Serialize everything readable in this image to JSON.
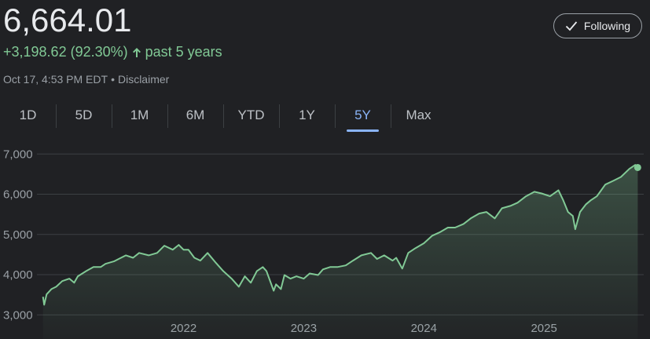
{
  "header": {
    "price": "6,664.01",
    "change": "+3,198.62 (92.30%)",
    "period": "past 5 years",
    "timestamp": "Oct 17, 4:53 PM EDT",
    "separator": "•",
    "disclaimer": "Disclaimer",
    "button": "Following"
  },
  "ranges": [
    "1D",
    "5D",
    "1M",
    "6M",
    "YTD",
    "1Y",
    "5Y",
    "Max"
  ],
  "selected_range": "5Y",
  "chart_data": {
    "type": "line",
    "x": [
      2020.83,
      2020.84,
      2020.86,
      2020.9,
      2020.94,
      2020.99,
      2021.05,
      2021.09,
      2021.12,
      2021.19,
      2021.25,
      2021.31,
      2021.35,
      2021.42,
      2021.46,
      2021.52,
      2021.58,
      2021.63,
      2021.71,
      2021.78,
      2021.84,
      2021.91,
      2021.96,
      2022.0,
      2022.04,
      2022.09,
      2022.14,
      2022.2,
      2022.27,
      2022.33,
      2022.4,
      2022.46,
      2022.51,
      2022.56,
      2022.61,
      2022.66,
      2022.69,
      2022.75,
      2022.77,
      2022.81,
      2022.84,
      2022.89,
      2022.94,
      2023.0,
      2023.05,
      2023.12,
      2023.16,
      2023.22,
      2023.28,
      2023.35,
      2023.41,
      2023.48,
      2023.56,
      2023.61,
      2023.67,
      2023.74,
      2023.77,
      2023.82,
      2023.87,
      2023.93,
      2024.0,
      2024.07,
      2024.13,
      2024.2,
      2024.26,
      2024.33,
      2024.39,
      2024.46,
      2024.52,
      2024.59,
      2024.65,
      2024.72,
      2024.78,
      2024.85,
      2024.92,
      2024.98,
      2025.05,
      2025.12,
      2025.16,
      2025.2,
      2025.24,
      2025.26,
      2025.3,
      2025.35,
      2025.39,
      2025.44,
      2025.51,
      2025.58,
      2025.64,
      2025.71,
      2025.76,
      2025.78
    ],
    "series": [
      {
        "color": "#81c995",
        "values": [
          3450,
          3250,
          3510,
          3640,
          3700,
          3840,
          3900,
          3800,
          3960,
          4090,
          4190,
          4190,
          4270,
          4330,
          4390,
          4480,
          4420,
          4540,
          4480,
          4540,
          4720,
          4620,
          4740,
          4620,
          4620,
          4420,
          4350,
          4540,
          4290,
          4090,
          3900,
          3700,
          3960,
          3800,
          4090,
          4190,
          4090,
          3600,
          3760,
          3640,
          3990,
          3900,
          3960,
          3900,
          4030,
          3990,
          4130,
          4190,
          4190,
          4230,
          4350,
          4480,
          4540,
          4390,
          4480,
          4350,
          4420,
          4150,
          4540,
          4660,
          4780,
          4970,
          5050,
          5170,
          5170,
          5260,
          5400,
          5520,
          5560,
          5400,
          5650,
          5710,
          5790,
          5950,
          6060,
          6020,
          5950,
          6100,
          5850,
          5560,
          5460,
          5130,
          5560,
          5750,
          5850,
          5950,
          6240,
          6340,
          6430,
          6630,
          6730,
          6664.01
        ]
      }
    ],
    "xlim": [
      2020.76,
      2025.83
    ],
    "ylim": [
      2400,
      7200
    ],
    "xticks": [
      2022,
      2023,
      2024,
      2025
    ],
    "yticks": [
      {
        "value": 3000,
        "label": "3,000"
      },
      {
        "value": 4000,
        "label": "4,000"
      },
      {
        "value": 5000,
        "label": "5,000"
      },
      {
        "value": 6000,
        "label": "6,000"
      },
      {
        "value": 7000,
        "label": "7,000"
      }
    ],
    "grid": true
  }
}
